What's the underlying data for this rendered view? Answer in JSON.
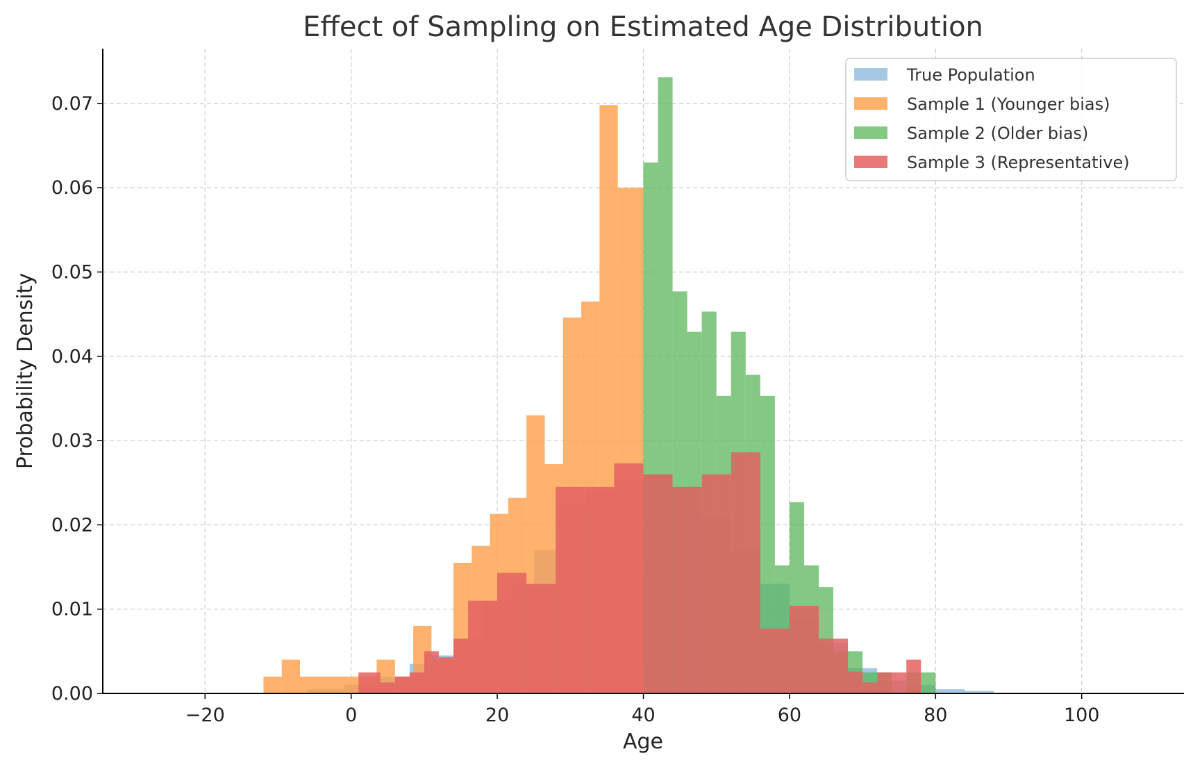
{
  "chart_data": {
    "type": "histogram",
    "title": "Effect of Sampling on Estimated Age Distribution",
    "xlabel": "Age",
    "ylabel": "Probability Density",
    "xlim": [
      -34,
      114
    ],
    "ylim": [
      0,
      0.0765
    ],
    "x_ticks": [
      -20,
      0,
      20,
      40,
      60,
      80,
      100
    ],
    "x_tick_labels": [
      "−20",
      "0",
      "20",
      "40",
      "60",
      "80",
      "100"
    ],
    "y_ticks": [
      0,
      0.01,
      0.02,
      0.03,
      0.04,
      0.05,
      0.06,
      0.07
    ],
    "y_tick_labels": [
      "0.00",
      "0.01",
      "0.02",
      "0.03",
      "0.04",
      "0.05",
      "0.06",
      "0.07"
    ],
    "grid": true,
    "legend_position": "top-right",
    "series": [
      {
        "name": "True Population",
        "color": "#7fb2d5",
        "opacity": 0.7,
        "bins": [
          [
            -6,
            -1,
            0.0005
          ],
          [
            -1,
            4,
            0.001
          ],
          [
            4,
            8,
            0.002
          ],
          [
            8,
            10,
            0.0035
          ],
          [
            10,
            14,
            0.0045
          ],
          [
            14,
            18,
            0.0065
          ],
          [
            18,
            22,
            0.011
          ],
          [
            22,
            25,
            0.013
          ],
          [
            25,
            28,
            0.017
          ],
          [
            28,
            32,
            0.0225
          ],
          [
            32,
            36,
            0.024
          ],
          [
            36,
            40,
            0.0255
          ],
          [
            40,
            44,
            0.026
          ],
          [
            44,
            48,
            0.0245
          ],
          [
            48,
            52,
            0.021
          ],
          [
            52,
            56,
            0.017
          ],
          [
            56,
            60,
            0.013
          ],
          [
            60,
            64,
            0.009
          ],
          [
            64,
            68,
            0.006
          ],
          [
            68,
            72,
            0.003
          ],
          [
            72,
            76,
            0.0015
          ],
          [
            76,
            80,
            0.001
          ],
          [
            80,
            84,
            0.0005
          ],
          [
            84,
            88,
            0.0003
          ]
        ]
      },
      {
        "name": "Sample 1 (Younger bias)",
        "color": "#fe9f4a",
        "opacity": 0.8,
        "bins": [
          [
            -12,
            -9.5,
            0.002
          ],
          [
            -9.5,
            -7,
            0.004
          ],
          [
            -7,
            3.5,
            0.002
          ],
          [
            3.5,
            6,
            0.004
          ],
          [
            6,
            8.5,
            0.002
          ],
          [
            8.5,
            11,
            0.008
          ],
          [
            11,
            14,
            0.004
          ],
          [
            14,
            16.5,
            0.0155
          ],
          [
            16.5,
            19,
            0.0175
          ],
          [
            19,
            21.5,
            0.0213
          ],
          [
            21.5,
            24,
            0.0232
          ],
          [
            24,
            26.5,
            0.033
          ],
          [
            26.5,
            29,
            0.0272
          ],
          [
            29,
            31.5,
            0.0446
          ],
          [
            31.5,
            34,
            0.0465
          ],
          [
            34,
            36.5,
            0.0698
          ],
          [
            36.5,
            39,
            0.06
          ],
          [
            39,
            40,
            0.06
          ]
        ]
      },
      {
        "name": "Sample 2 (Older bias)",
        "color": "#5ab65a",
        "opacity": 0.75,
        "bins": [
          [
            40,
            42,
            0.063
          ],
          [
            42,
            44,
            0.0731
          ],
          [
            44,
            46,
            0.0477
          ],
          [
            46,
            48,
            0.0429
          ],
          [
            48,
            50,
            0.0453
          ],
          [
            50,
            52,
            0.0353
          ],
          [
            52,
            54,
            0.0429
          ],
          [
            54,
            56,
            0.0378
          ],
          [
            56,
            58,
            0.0353
          ],
          [
            58,
            60,
            0.0152
          ],
          [
            60,
            62,
            0.0227
          ],
          [
            62,
            64,
            0.0152
          ],
          [
            64,
            66,
            0.0126
          ],
          [
            66,
            68,
            0.005
          ],
          [
            68,
            70,
            0.005
          ],
          [
            70,
            72,
            0.0025
          ],
          [
            72,
            74,
            0.0025
          ],
          [
            74,
            76,
            0.0
          ],
          [
            76,
            78,
            0.0025
          ],
          [
            78,
            80,
            0.0025
          ]
        ]
      },
      {
        "name": "Sample 3 (Representative)",
        "color": "#e36262",
        "opacity": 0.85,
        "bins": [
          [
            1,
            4,
            0.0025
          ],
          [
            4,
            6,
            0.0013
          ],
          [
            6,
            8,
            0.002
          ],
          [
            8,
            10,
            0.0025
          ],
          [
            10,
            12,
            0.005
          ],
          [
            12,
            14,
            0.0043
          ],
          [
            14,
            16,
            0.0065
          ],
          [
            16,
            20,
            0.011
          ],
          [
            20,
            24,
            0.0143
          ],
          [
            24,
            28,
            0.013
          ],
          [
            28,
            32,
            0.0245
          ],
          [
            32,
            36,
            0.0245
          ],
          [
            36,
            40,
            0.0273
          ],
          [
            40,
            44,
            0.026
          ],
          [
            44,
            48,
            0.0245
          ],
          [
            48,
            52,
            0.026
          ],
          [
            52,
            56,
            0.0286
          ],
          [
            56,
            60,
            0.0077
          ],
          [
            60,
            64,
            0.0104
          ],
          [
            64,
            68,
            0.0065
          ],
          [
            68,
            70,
            0.0026
          ],
          [
            70,
            72,
            0.0013
          ],
          [
            72,
            76,
            0.0025
          ],
          [
            76,
            78,
            0.004
          ]
        ]
      }
    ]
  }
}
